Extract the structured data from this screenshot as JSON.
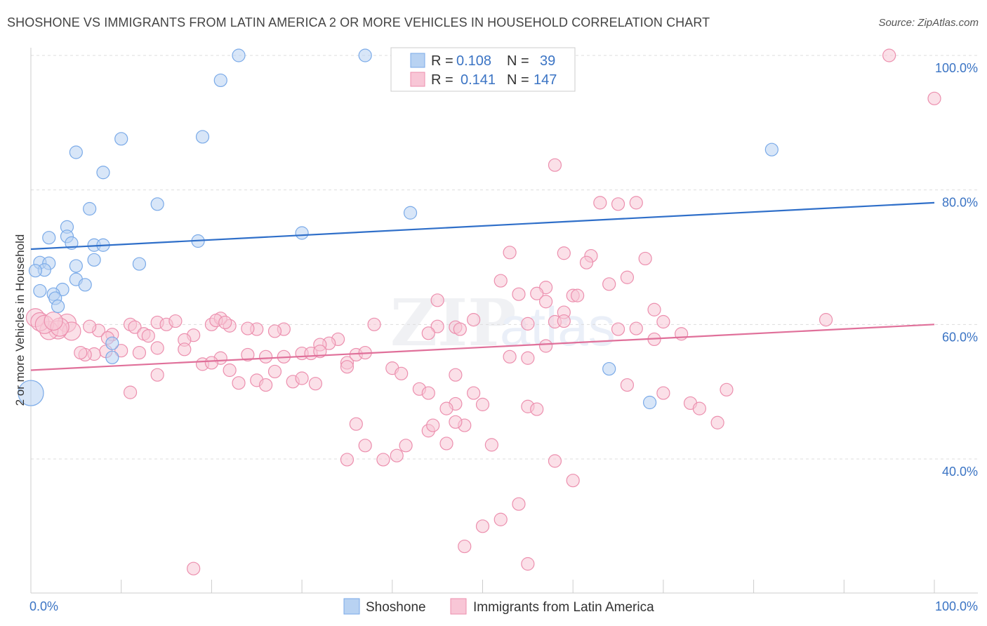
{
  "title": "SHOSHONE VS IMMIGRANTS FROM LATIN AMERICA 2 OR MORE VEHICLES IN HOUSEHOLD CORRELATION CHART",
  "source": "Source: ZipAtlas.com",
  "watermark": "ZIPatlas",
  "chart_data": {
    "type": "scatter",
    "title": "SHOSHONE VS IMMIGRANTS FROM LATIN AMERICA 2 OR MORE VEHICLES IN HOUSEHOLD CORRELATION CHART",
    "xlabel": "",
    "ylabel": "2 or more Vehicles in Household",
    "xlim": [
      0,
      100
    ],
    "ylim": [
      20,
      102
    ],
    "x_tick_labels": [
      "0.0%",
      "100.0%"
    ],
    "y_tick_labels": [
      {
        "value": 40,
        "label": "40.0%"
      },
      {
        "value": 60,
        "label": "60.0%"
      },
      {
        "value": 80,
        "label": "80.0%"
      },
      {
        "value": 100,
        "label": "100.0%"
      }
    ],
    "grid": true,
    "legend_position": "top-center",
    "series": [
      {
        "name": "Shoshone",
        "color": "#7aaae8",
        "fill": "#b8d2f2",
        "line_color": "#2f6fc9",
        "R": "0.108",
        "N": "39",
        "trend": [
          [
            0,
            71.2
          ],
          [
            100,
            78.1
          ]
        ],
        "points": [
          [
            23,
            100
          ],
          [
            37,
            100
          ],
          [
            21,
            96.3
          ],
          [
            10,
            87.6
          ],
          [
            19,
            87.9
          ],
          [
            5,
            85.6
          ],
          [
            82,
            86.0
          ],
          [
            8,
            82.6
          ],
          [
            14,
            77.9
          ],
          [
            6.5,
            77.2
          ],
          [
            42,
            76.6
          ],
          [
            4,
            74.5
          ],
          [
            30,
            73.6
          ],
          [
            2,
            72.9
          ],
          [
            4,
            73.1
          ],
          [
            18.5,
            72.4
          ],
          [
            4.5,
            72.1
          ],
          [
            7,
            71.8
          ],
          [
            8,
            71.8
          ],
          [
            7,
            69.6
          ],
          [
            1,
            69.2
          ],
          [
            2,
            69.1
          ],
          [
            12,
            69.0
          ],
          [
            5,
            68.7
          ],
          [
            1.5,
            68.1
          ],
          [
            0.5,
            68.0
          ],
          [
            5,
            66.7
          ],
          [
            6,
            65.9
          ],
          [
            1,
            65.0
          ],
          [
            3.5,
            65.2
          ],
          [
            2.5,
            64.5
          ],
          [
            2.7,
            63.9
          ],
          [
            3,
            62.7
          ],
          [
            9,
            57.2
          ],
          [
            9,
            55.1
          ],
          [
            64,
            53.4
          ],
          [
            68.5,
            48.4
          ],
          [
            0,
            49.8
          ]
        ]
      },
      {
        "name": "Immigrants from Latin America",
        "color": "#ec8fae",
        "fill": "#f8c6d6",
        "line_color": "#e0709a",
        "R": "0.141",
        "N": "147",
        "trend": [
          [
            0,
            53.2
          ],
          [
            100,
            60.0
          ]
        ],
        "points": [
          [
            95,
            100
          ],
          [
            100,
            93.6
          ],
          [
            58,
            83.7
          ],
          [
            63,
            78.1
          ],
          [
            65,
            77.9
          ],
          [
            67,
            78.1
          ],
          [
            53,
            70.7
          ],
          [
            59,
            70.6
          ],
          [
            62,
            70.2
          ],
          [
            61.5,
            69.2
          ],
          [
            68,
            69.8
          ],
          [
            52,
            66.5
          ],
          [
            57,
            65.5
          ],
          [
            64,
            66.0
          ],
          [
            66,
            67.0
          ],
          [
            54,
            64.5
          ],
          [
            56,
            64.6
          ],
          [
            60,
            64.3
          ],
          [
            60.5,
            64.3
          ],
          [
            57,
            63.4
          ],
          [
            45,
            63.6
          ],
          [
            59,
            61.8
          ],
          [
            69,
            62.2
          ],
          [
            49,
            60.7
          ],
          [
            58,
            60.4
          ],
          [
            59,
            60.5
          ],
          [
            70,
            60.4
          ],
          [
            88,
            60.7
          ],
          [
            38,
            60.0
          ],
          [
            45,
            59.7
          ],
          [
            47,
            59.6
          ],
          [
            47.5,
            59.3
          ],
          [
            55,
            60.1
          ],
          [
            65,
            59.3
          ],
          [
            67,
            59.4
          ],
          [
            72,
            58.6
          ],
          [
            44,
            58.7
          ],
          [
            69,
            57.8
          ],
          [
            34,
            57.8
          ],
          [
            33,
            57.2
          ],
          [
            32,
            57.0
          ],
          [
            28,
            59.3
          ],
          [
            27,
            59.0
          ],
          [
            25,
            59.3
          ],
          [
            24,
            59.4
          ],
          [
            22,
            59.8
          ],
          [
            20,
            60.0
          ],
          [
            14,
            60.3
          ],
          [
            15,
            60.0
          ],
          [
            16,
            60.5
          ],
          [
            7.5,
            59.1
          ],
          [
            6.5,
            59.7
          ],
          [
            4,
            60.2
          ],
          [
            4.5,
            59.0
          ],
          [
            3,
            59.2
          ],
          [
            2,
            59.1
          ],
          [
            0.5,
            61.0
          ],
          [
            1,
            60.4
          ],
          [
            1.5,
            60.0
          ],
          [
            3.2,
            59.6
          ],
          [
            2.5,
            60.5
          ],
          [
            11,
            60.0
          ],
          [
            11.5,
            59.6
          ],
          [
            12.5,
            58.6
          ],
          [
            13,
            58.3
          ],
          [
            9,
            58.5
          ],
          [
            8.5,
            58.0
          ],
          [
            18,
            58.4
          ],
          [
            21,
            60.9
          ],
          [
            20.5,
            60.6
          ],
          [
            21.5,
            60.3
          ],
          [
            17,
            57.7
          ],
          [
            17,
            56.3
          ],
          [
            14,
            56.5
          ],
          [
            12,
            55.8
          ],
          [
            10,
            56.1
          ],
          [
            8.3,
            56.0
          ],
          [
            7,
            55.6
          ],
          [
            6,
            55.5
          ],
          [
            5.5,
            55.8
          ],
          [
            21,
            55.0
          ],
          [
            19,
            54.1
          ],
          [
            20,
            54.3
          ],
          [
            24,
            55.5
          ],
          [
            26,
            55.2
          ],
          [
            28,
            55.2
          ],
          [
            30,
            55.7
          ],
          [
            31,
            55.7
          ],
          [
            32,
            56.0
          ],
          [
            27,
            53.0
          ],
          [
            22,
            53.2
          ],
          [
            14,
            52.5
          ],
          [
            11,
            49.9
          ],
          [
            23,
            51.3
          ],
          [
            25,
            51.7
          ],
          [
            26,
            51.0
          ],
          [
            29,
            51.5
          ],
          [
            30,
            52.0
          ],
          [
            31.5,
            51.2
          ],
          [
            35,
            54.3
          ],
          [
            35,
            53.7
          ],
          [
            36,
            55.5
          ],
          [
            37,
            55.8
          ],
          [
            40,
            53.5
          ],
          [
            41,
            52.7
          ],
          [
            43,
            50.4
          ],
          [
            44,
            49.8
          ],
          [
            47,
            52.5
          ],
          [
            49,
            49.8
          ],
          [
            50,
            48.1
          ],
          [
            47,
            48.2
          ],
          [
            46,
            47.5
          ],
          [
            53,
            55.2
          ],
          [
            55,
            55.0
          ],
          [
            57,
            56.8
          ],
          [
            48,
            45.0
          ],
          [
            47,
            45.5
          ],
          [
            44,
            44.2
          ],
          [
            44.5,
            45.0
          ],
          [
            46,
            42.3
          ],
          [
            41.5,
            42.0
          ],
          [
            51,
            42.1
          ],
          [
            37,
            42.0
          ],
          [
            39,
            39.9
          ],
          [
            40.5,
            40.5
          ],
          [
            35,
            39.9
          ],
          [
            55,
            47.8
          ],
          [
            56,
            47.4
          ],
          [
            66,
            51.0
          ],
          [
            70,
            49.8
          ],
          [
            73,
            48.3
          ],
          [
            74,
            47.5
          ],
          [
            76,
            45.4
          ],
          [
            58,
            39.7
          ],
          [
            60,
            36.8
          ],
          [
            54,
            33.3
          ],
          [
            52,
            31.0
          ],
          [
            50,
            30.0
          ],
          [
            48,
            27.0
          ],
          [
            55,
            24.4
          ],
          [
            18,
            23.7
          ],
          [
            77,
            50.3
          ],
          [
            36,
            45.2
          ]
        ]
      }
    ]
  },
  "legend": {
    "r_label": "R =",
    "n_label": "N =",
    "items": [
      {
        "r": "0.108",
        "n": "39"
      },
      {
        "r": "0.141",
        "n": "147"
      }
    ]
  },
  "bottom_legend": {
    "items": [
      {
        "label": "Shoshone"
      },
      {
        "label": "Immigrants from Latin America"
      }
    ]
  }
}
